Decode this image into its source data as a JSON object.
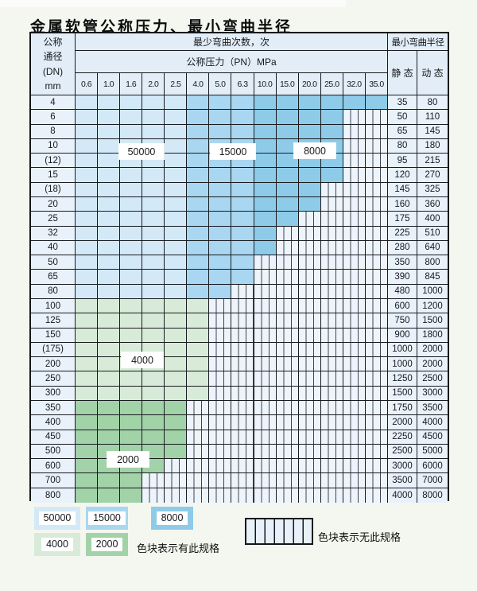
{
  "title": "金属软管公称压力、最小弯曲半径",
  "table": {
    "corner": {
      "line1": "公称",
      "line2": "通径",
      "line3": "(DN)",
      "line4": "mm"
    },
    "bend_header": "最少弯曲次数，次",
    "pressure_header": "公称压力（PN）MPa",
    "radius_header": "最小弯曲半径",
    "static_label": "静 态",
    "dynamic_label": "动 态",
    "pressure_columns": [
      "0.6",
      "1.0",
      "1.6",
      "2.0",
      "2.5",
      "4.0",
      "5.0",
      "6.3",
      "10.0",
      "15.0",
      "20.0",
      "25.0",
      "32.0",
      "35.0"
    ],
    "rows": [
      {
        "dn": "4",
        "zone": "blue",
        "max_col": 13,
        "static": "35",
        "dynamic": "80"
      },
      {
        "dn": "6",
        "zone": "blue",
        "max_col": 11,
        "static": "50",
        "dynamic": "110"
      },
      {
        "dn": "8",
        "zone": "blue",
        "max_col": 11,
        "static": "65",
        "dynamic": "145"
      },
      {
        "dn": "10",
        "zone": "blue",
        "max_col": 11,
        "static": "80",
        "dynamic": "180"
      },
      {
        "dn": "(12)",
        "zone": "blue",
        "max_col": 11,
        "static": "95",
        "dynamic": "215"
      },
      {
        "dn": "15",
        "zone": "blue",
        "max_col": 11,
        "static": "120",
        "dynamic": "270"
      },
      {
        "dn": "(18)",
        "zone": "blue",
        "max_col": 10,
        "static": "145",
        "dynamic": "325"
      },
      {
        "dn": "20",
        "zone": "blue",
        "max_col": 10,
        "static": "160",
        "dynamic": "360"
      },
      {
        "dn": "25",
        "zone": "blue",
        "max_col": 9,
        "static": "175",
        "dynamic": "400"
      },
      {
        "dn": "32",
        "zone": "blue",
        "max_col": 8,
        "static": "225",
        "dynamic": "510"
      },
      {
        "dn": "40",
        "zone": "blue",
        "max_col": 8,
        "static": "280",
        "dynamic": "640"
      },
      {
        "dn": "50",
        "zone": "blue",
        "max_col": 7,
        "static": "350",
        "dynamic": "800"
      },
      {
        "dn": "65",
        "zone": "blue",
        "max_col": 7,
        "static": "390",
        "dynamic": "845"
      },
      {
        "dn": "80",
        "zone": "blue",
        "max_col": 6,
        "static": "480",
        "dynamic": "1000"
      },
      {
        "dn": "100",
        "zone": "green4000",
        "max_col": 5,
        "static": "600",
        "dynamic": "1200"
      },
      {
        "dn": "125",
        "zone": "green4000",
        "max_col": 5,
        "static": "750",
        "dynamic": "1500"
      },
      {
        "dn": "150",
        "zone": "green4000",
        "max_col": 5,
        "static": "900",
        "dynamic": "1800"
      },
      {
        "dn": "(175)",
        "zone": "green4000",
        "max_col": 5,
        "static": "1000",
        "dynamic": "2000"
      },
      {
        "dn": "200",
        "zone": "green4000",
        "max_col": 5,
        "static": "1000",
        "dynamic": "2000"
      },
      {
        "dn": "250",
        "zone": "green4000",
        "max_col": 5,
        "static": "1250",
        "dynamic": "2500"
      },
      {
        "dn": "300",
        "zone": "green4000",
        "max_col": 5,
        "static": "1500",
        "dynamic": "3000"
      },
      {
        "dn": "350",
        "zone": "green2000",
        "max_col": 4,
        "static": "1750",
        "dynamic": "3500"
      },
      {
        "dn": "400",
        "zone": "green2000",
        "max_col": 4,
        "static": "2000",
        "dynamic": "4000"
      },
      {
        "dn": "450",
        "zone": "green2000",
        "max_col": 4,
        "static": "2250",
        "dynamic": "4500"
      },
      {
        "dn": "500",
        "zone": "green2000",
        "max_col": 4,
        "static": "2500",
        "dynamic": "5000"
      },
      {
        "dn": "600",
        "zone": "green2000",
        "max_col": 3,
        "static": "3000",
        "dynamic": "6000"
      },
      {
        "dn": "700",
        "zone": "green2000",
        "max_col": 2,
        "static": "3500",
        "dynamic": "7000"
      },
      {
        "dn": "800",
        "zone": "green2000",
        "max_col": 2,
        "static": "4000",
        "dynamic": "8000"
      }
    ],
    "region_labels": {
      "blue_50000": "50000",
      "blue_15000": "15000",
      "blue_8000": "8000",
      "green_4000": "4000",
      "green_2000": "2000"
    }
  },
  "colors": {
    "blue_50000": "#d3e9f7",
    "blue_15000": "#a9d6f0",
    "blue_8000": "#8ecbe9",
    "green_4000": "#d8ebd8",
    "green_2000": "#a2d2a8",
    "hatch_bg": "#eef4fb",
    "grid_line": "#181b1f"
  },
  "legend": {
    "items": [
      {
        "label": "50000",
        "color": "#d3e9f7"
      },
      {
        "label": "15000",
        "color": "#a9d6f0"
      },
      {
        "label": "8000",
        "color": "#8ecbe9"
      },
      {
        "label": "4000",
        "color": "#d8ebd8"
      },
      {
        "label": "2000",
        "color": "#a2d2a8"
      }
    ],
    "available_label": "色块表示有此规格",
    "unavailable_label": "色块表示无此规格"
  }
}
